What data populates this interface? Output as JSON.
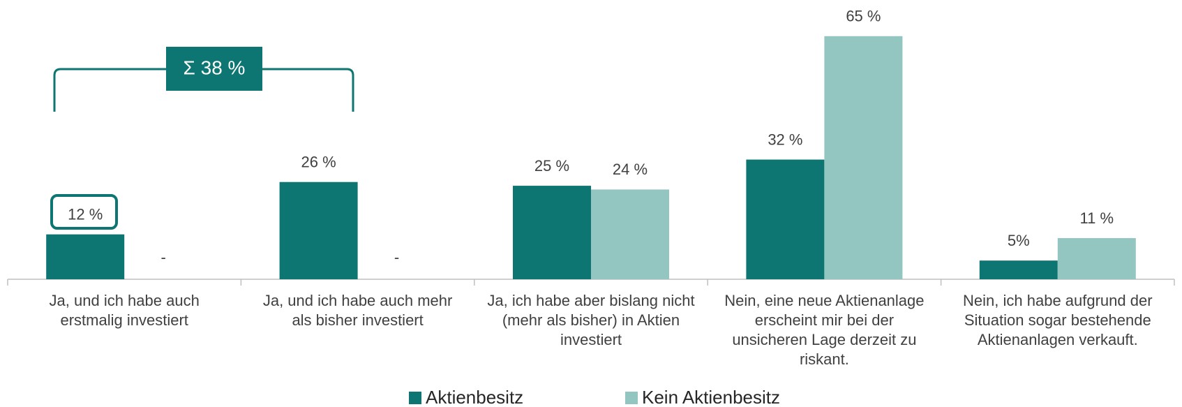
{
  "chart_data": {
    "type": "bar",
    "categories": [
      "Ja, und ich habe auch\nerstmalig investiert",
      "Ja, und ich habe auch mehr\nals bisher investiert",
      "Ja, ich habe aber bislang nicht\n(mehr als bisher) in Aktien\ninvestiert",
      "Nein, eine neue Aktienanlage\nerscheint mir bei der\nunsicheren Lage derzeit zu\nriskant.",
      "Nein, ich habe aufgrund der\nSituation sogar bestehende\nAktienanlagen verkauft."
    ],
    "series": [
      {
        "name": "Aktienbesitz",
        "color": "#0e7672",
        "values": [
          12,
          26,
          25,
          32,
          5
        ],
        "value_labels": [
          "12 %",
          "26 %",
          "25 %",
          "32 %",
          "5%"
        ]
      },
      {
        "name": "Kein Aktienbesitz",
        "color": "#93c5c1",
        "values": [
          null,
          null,
          24,
          65,
          11
        ],
        "value_labels": [
          "-",
          "-",
          "24 %",
          "65 %",
          "11 %"
        ]
      }
    ],
    "ylim": [
      0,
      70
    ],
    "annotation": "Σ 38 %"
  }
}
